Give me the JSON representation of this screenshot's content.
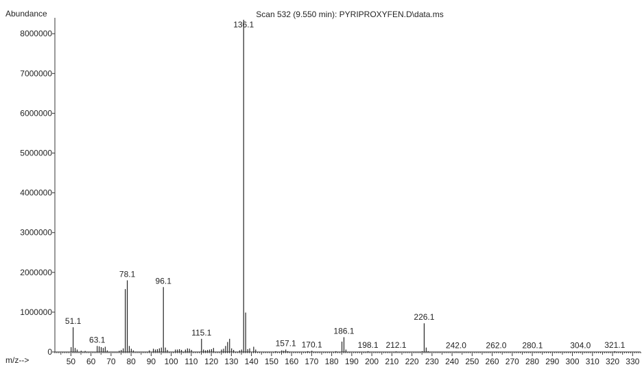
{
  "chart_data": {
    "type": "bar",
    "title": "Scan 532 (9.550 min): PYRIPROXYFEN.D\\data.ms",
    "ylabel": "Abundance",
    "xlabel": "m/z-->",
    "xlim": [
      42,
      334
    ],
    "ylim": [
      0,
      8400000
    ],
    "y_ticks": [
      0,
      1000000,
      2000000,
      3000000,
      4000000,
      5000000,
      6000000,
      7000000,
      8000000
    ],
    "x_ticks": [
      50,
      60,
      70,
      80,
      90,
      100,
      110,
      120,
      130,
      140,
      150,
      160,
      170,
      180,
      190,
      200,
      210,
      220,
      230,
      240,
      250,
      260,
      270,
      280,
      290,
      300,
      310,
      320,
      330
    ],
    "peak_labels": [
      "51.1",
      "63.1",
      "78.1",
      "96.1",
      "115.1",
      "136.1",
      "157.1",
      "170.1",
      "186.1",
      "198.1",
      "212.1",
      "226.1",
      "242.0",
      "262.0",
      "280.1",
      "304.0",
      "321.1"
    ],
    "peaks": [
      {
        "x": 50.1,
        "y": 120000
      },
      {
        "x": 51.1,
        "y": 620000
      },
      {
        "x": 52.1,
        "y": 100000
      },
      {
        "x": 53.1,
        "y": 60000
      },
      {
        "x": 55.1,
        "y": 30000
      },
      {
        "x": 57.1,
        "y": 25000
      },
      {
        "x": 63.1,
        "y": 150000
      },
      {
        "x": 64.1,
        "y": 140000
      },
      {
        "x": 65.1,
        "y": 120000
      },
      {
        "x": 66.1,
        "y": 100000
      },
      {
        "x": 67.1,
        "y": 130000
      },
      {
        "x": 68.1,
        "y": 40000
      },
      {
        "x": 74.1,
        "y": 30000
      },
      {
        "x": 75.1,
        "y": 50000
      },
      {
        "x": 76.1,
        "y": 90000
      },
      {
        "x": 77.1,
        "y": 1580000
      },
      {
        "x": 78.1,
        "y": 1800000
      },
      {
        "x": 79.1,
        "y": 150000
      },
      {
        "x": 80.1,
        "y": 80000
      },
      {
        "x": 81.1,
        "y": 40000
      },
      {
        "x": 89.1,
        "y": 40000
      },
      {
        "x": 91.1,
        "y": 80000
      },
      {
        "x": 92.1,
        "y": 60000
      },
      {
        "x": 93.1,
        "y": 70000
      },
      {
        "x": 94.1,
        "y": 90000
      },
      {
        "x": 95.1,
        "y": 110000
      },
      {
        "x": 96.1,
        "y": 1630000
      },
      {
        "x": 97.1,
        "y": 110000
      },
      {
        "x": 98.1,
        "y": 50000
      },
      {
        "x": 102.1,
        "y": 60000
      },
      {
        "x": 103.1,
        "y": 60000
      },
      {
        "x": 104.1,
        "y": 70000
      },
      {
        "x": 105.1,
        "y": 50000
      },
      {
        "x": 107.1,
        "y": 60000
      },
      {
        "x": 108.1,
        "y": 90000
      },
      {
        "x": 109.1,
        "y": 80000
      },
      {
        "x": 110.1,
        "y": 50000
      },
      {
        "x": 115.1,
        "y": 330000
      },
      {
        "x": 116.1,
        "y": 60000
      },
      {
        "x": 117.1,
        "y": 40000
      },
      {
        "x": 118.1,
        "y": 50000
      },
      {
        "x": 119.1,
        "y": 60000
      },
      {
        "x": 120.1,
        "y": 70000
      },
      {
        "x": 121.1,
        "y": 100000
      },
      {
        "x": 125.1,
        "y": 60000
      },
      {
        "x": 126.1,
        "y": 80000
      },
      {
        "x": 127.1,
        "y": 150000
      },
      {
        "x": 128.1,
        "y": 250000
      },
      {
        "x": 129.1,
        "y": 330000
      },
      {
        "x": 130.1,
        "y": 90000
      },
      {
        "x": 131.1,
        "y": 50000
      },
      {
        "x": 134.1,
        "y": 40000
      },
      {
        "x": 135.1,
        "y": 60000
      },
      {
        "x": 136.1,
        "y": 8350000
      },
      {
        "x": 137.1,
        "y": 990000
      },
      {
        "x": 138.1,
        "y": 70000
      },
      {
        "x": 139.1,
        "y": 90000
      },
      {
        "x": 141.1,
        "y": 130000
      },
      {
        "x": 142.1,
        "y": 60000
      },
      {
        "x": 152.1,
        "y": 20000
      },
      {
        "x": 155.1,
        "y": 40000
      },
      {
        "x": 156.1,
        "y": 30000
      },
      {
        "x": 157.1,
        "y": 60000
      },
      {
        "x": 158.1,
        "y": 20000
      },
      {
        "x": 168.1,
        "y": 20000
      },
      {
        "x": 170.1,
        "y": 30000
      },
      {
        "x": 182.1,
        "y": 20000
      },
      {
        "x": 185.1,
        "y": 260000
      },
      {
        "x": 186.1,
        "y": 370000
      },
      {
        "x": 187.1,
        "y": 60000
      },
      {
        "x": 198.1,
        "y": 20000
      },
      {
        "x": 212.1,
        "y": 15000
      },
      {
        "x": 225.1,
        "y": 20000
      },
      {
        "x": 226.1,
        "y": 720000
      },
      {
        "x": 227.1,
        "y": 110000
      },
      {
        "x": 228.1,
        "y": 20000
      },
      {
        "x": 242.0,
        "y": 10000
      },
      {
        "x": 262.0,
        "y": 8000
      },
      {
        "x": 280.1,
        "y": 8000
      },
      {
        "x": 304.0,
        "y": 8000
      },
      {
        "x": 321.1,
        "y": 20000
      }
    ]
  }
}
